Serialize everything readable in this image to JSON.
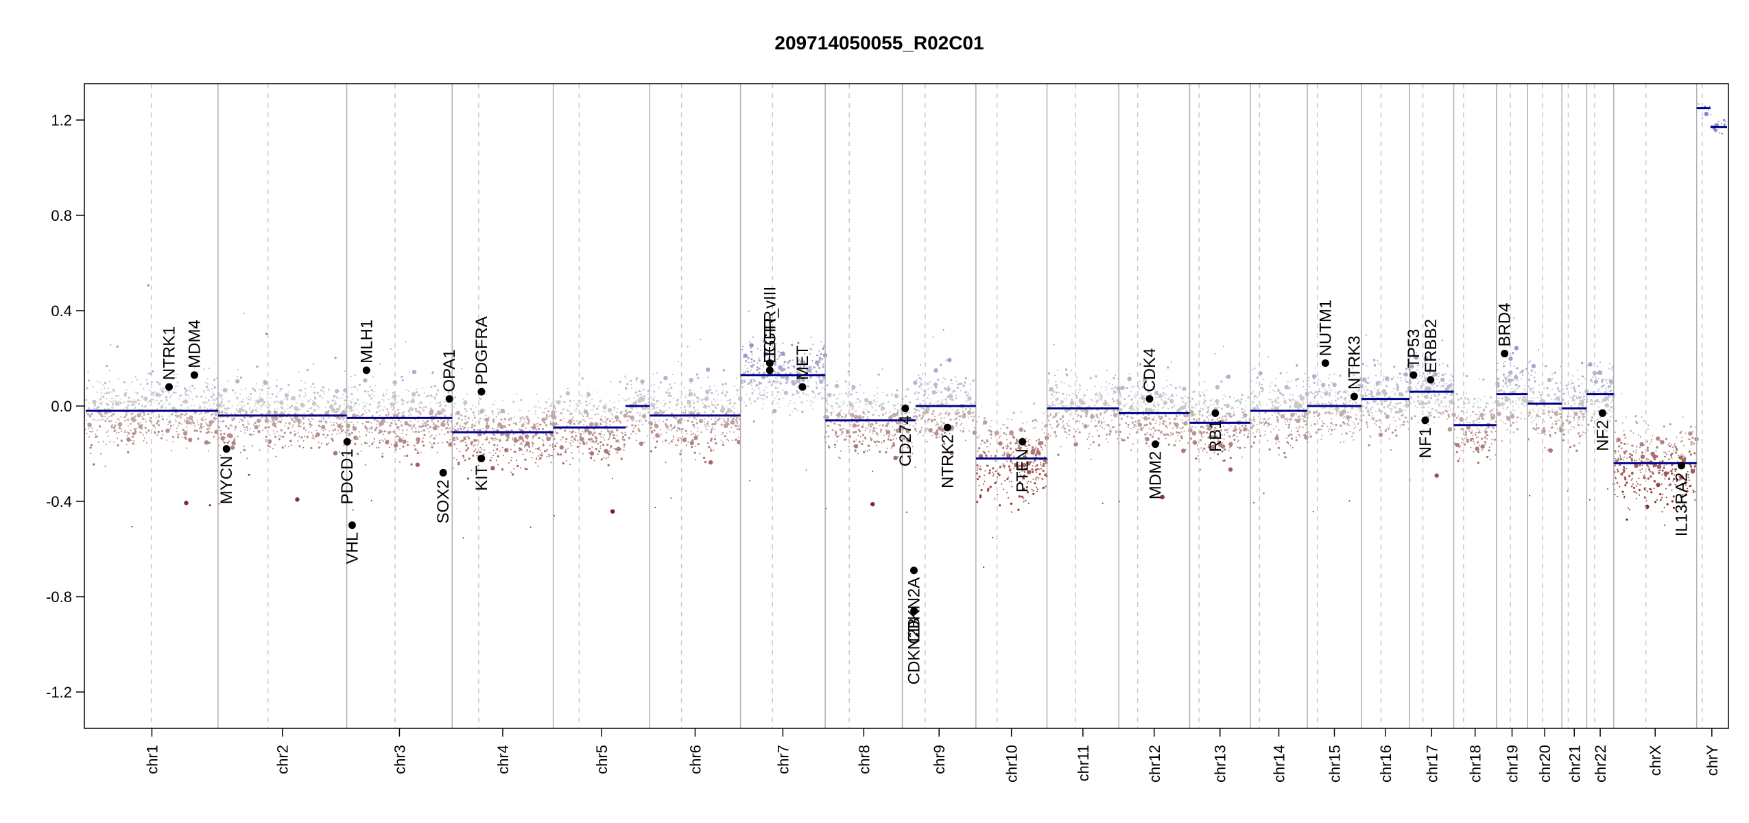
{
  "chart_data": {
    "type": "scatter",
    "title": "209714050055_R02C01",
    "xlabel": "",
    "ylabel": "",
    "ylim": [
      -1.35,
      1.35
    ],
    "yticks": [
      1.2,
      0.8,
      0.4,
      0.0,
      -0.4,
      -0.8,
      -1.2
    ],
    "ytick_labels": [
      "1.2",
      "0.8",
      "0.4",
      "0.0",
      "-0.4",
      "-0.8",
      "-1.2"
    ],
    "colors": {
      "segment": "#00008b",
      "gain": "#8f90c8",
      "neutral": "#bdbdbd",
      "loss": "#8b1a1a",
      "gene_dot": "#000000",
      "divider": "#b0b0b0"
    },
    "chromosomes": [
      {
        "name": "chr1",
        "start": 0.0,
        "end": 248.96,
        "centromere": 123.4,
        "segments": [
          {
            "start": 0.0,
            "end": 248.96,
            "value": -0.02
          }
        ]
      },
      {
        "name": "chr2",
        "start": 248.96,
        "end": 491.15,
        "centromere": 93.9,
        "segments": [
          {
            "start": 0.0,
            "end": 242.19,
            "value": -0.04
          }
        ]
      },
      {
        "name": "chr3",
        "start": 491.15,
        "end": 689.45,
        "centromere": 90.9,
        "segments": [
          {
            "start": 0.0,
            "end": 198.3,
            "value": -0.05
          }
        ]
      },
      {
        "name": "chr4",
        "start": 689.45,
        "end": 879.66,
        "centromere": 50.0,
        "segments": [
          {
            "start": 0.0,
            "end": 190.21,
            "value": -0.11
          }
        ]
      },
      {
        "name": "chr5",
        "start": 879.66,
        "end": 1061.2,
        "centromere": 48.8,
        "segments": [
          {
            "start": 0.0,
            "end": 136.0,
            "value": -0.09
          },
          {
            "start": 136.0,
            "end": 181.54,
            "value": 0.0
          }
        ]
      },
      {
        "name": "chr6",
        "start": 1061.2,
        "end": 1232.01,
        "centromere": 59.8,
        "segments": [
          {
            "start": 0.0,
            "end": 170.81,
            "value": -0.04
          }
        ]
      },
      {
        "name": "chr7",
        "start": 1232.01,
        "end": 1391.36,
        "centromere": 60.1,
        "segments": [
          {
            "start": 0.0,
            "end": 159.35,
            "value": 0.13
          }
        ]
      },
      {
        "name": "chr8",
        "start": 1391.36,
        "end": 1536.5,
        "centromere": 45.2,
        "segments": [
          {
            "start": 0.0,
            "end": 145.14,
            "value": -0.06
          }
        ]
      },
      {
        "name": "chr9",
        "start": 1536.5,
        "end": 1674.89,
        "centromere": 43.0,
        "segments": [
          {
            "start": 0.0,
            "end": 25.0,
            "value": -0.06
          },
          {
            "start": 25.0,
            "end": 138.39,
            "value": 0.0
          }
        ]
      },
      {
        "name": "chr10",
        "start": 1674.89,
        "end": 1808.69,
        "centromere": 39.8,
        "segments": [
          {
            "start": 0.0,
            "end": 133.8,
            "value": -0.22
          }
        ]
      },
      {
        "name": "chr11",
        "start": 1808.69,
        "end": 1943.77,
        "centromere": 53.4,
        "segments": [
          {
            "start": 0.0,
            "end": 135.09,
            "value": -0.01
          }
        ]
      },
      {
        "name": "chr12",
        "start": 1943.77,
        "end": 2077.04,
        "centromere": 35.5,
        "segments": [
          {
            "start": 0.0,
            "end": 133.28,
            "value": -0.03
          }
        ]
      },
      {
        "name": "chr13",
        "start": 2077.04,
        "end": 2191.41,
        "centromere": 17.7,
        "segments": [
          {
            "start": 0.0,
            "end": 114.36,
            "value": -0.07
          }
        ]
      },
      {
        "name": "chr14",
        "start": 2191.41,
        "end": 2298.45,
        "centromere": 17.2,
        "segments": [
          {
            "start": 0.0,
            "end": 107.04,
            "value": -0.02
          }
        ]
      },
      {
        "name": "chr15",
        "start": 2298.45,
        "end": 2400.44,
        "centromere": 19.0,
        "segments": [
          {
            "start": 0.0,
            "end": 101.99,
            "value": 0.0
          }
        ]
      },
      {
        "name": "chr16",
        "start": 2400.44,
        "end": 2490.78,
        "centromere": 36.8,
        "segments": [
          {
            "start": 0.0,
            "end": 90.34,
            "value": 0.03
          }
        ]
      },
      {
        "name": "chr17",
        "start": 2490.78,
        "end": 2574.04,
        "centromere": 25.1,
        "segments": [
          {
            "start": 0.0,
            "end": 83.26,
            "value": 0.06
          }
        ]
      },
      {
        "name": "chr18",
        "start": 2574.04,
        "end": 2654.41,
        "centromere": 18.5,
        "segments": [
          {
            "start": 0.0,
            "end": 80.37,
            "value": -0.08
          }
        ]
      },
      {
        "name": "chr19",
        "start": 2654.41,
        "end": 2713.03,
        "centromere": 26.2,
        "segments": [
          {
            "start": 0.0,
            "end": 58.62,
            "value": 0.05
          }
        ]
      },
      {
        "name": "chr20",
        "start": 2713.03,
        "end": 2777.47,
        "centromere": 28.1,
        "segments": [
          {
            "start": 0.0,
            "end": 64.44,
            "value": 0.01
          }
        ]
      },
      {
        "name": "chr21",
        "start": 2777.47,
        "end": 2824.18,
        "centromere": 12.0,
        "segments": [
          {
            "start": 0.0,
            "end": 46.71,
            "value": -0.01
          }
        ]
      },
      {
        "name": "chr22",
        "start": 2824.18,
        "end": 2875.0,
        "centromere": 15.0,
        "segments": [
          {
            "start": 0.0,
            "end": 50.82,
            "value": 0.05
          }
        ]
      },
      {
        "name": "chrX",
        "start": 2875.0,
        "end": 3031.04,
        "centromere": 60.6,
        "segments": [
          {
            "start": 0.0,
            "end": 156.04,
            "value": -0.24
          }
        ]
      },
      {
        "name": "chrY",
        "start": 3031.04,
        "end": 3088.27,
        "centromere": 10.4,
        "segments": [
          {
            "start": 0.0,
            "end": 26.0,
            "value": 1.25
          },
          {
            "start": 26.0,
            "end": 57.23,
            "value": 1.17
          }
        ]
      }
    ],
    "genes": [
      {
        "name": "NTRK1",
        "x": 156.8,
        "y": 0.08,
        "label": "above"
      },
      {
        "name": "MDM4",
        "x": 204.5,
        "y": 0.13,
        "label": "above"
      },
      {
        "name": "MYCN",
        "x": 264.8,
        "y": -0.18,
        "label": "below"
      },
      {
        "name": "VHL",
        "x": 501.3,
        "y": -0.5,
        "label": "below"
      },
      {
        "name": "PDCD1",
        "x": 491.9,
        "y": -0.15,
        "label": "below"
      },
      {
        "name": "MLH1",
        "x": 528.2,
        "y": 0.15,
        "label": "above"
      },
      {
        "name": "SOX2",
        "x": 672.6,
        "y": -0.28,
        "label": "below"
      },
      {
        "name": "OPA1",
        "x": 684.2,
        "y": 0.03,
        "label": "above"
      },
      {
        "name": "PDGFRA",
        "x": 744.6,
        "y": 0.06,
        "label": "above"
      },
      {
        "name": "KIT",
        "x": 744.4,
        "y": -0.22,
        "label": "below"
      },
      {
        "name": "EGFR",
        "x": 1287.1,
        "y": 0.18,
        "label": "above"
      },
      {
        "name": "EGFR_vIII",
        "x": 1287.1,
        "y": 0.15,
        "label": "above"
      },
      {
        "name": "MET",
        "x": 1348.5,
        "y": 0.08,
        "label": "above"
      },
      {
        "name": "CD274",
        "x": 1542.0,
        "y": -0.01,
        "label": "below"
      },
      {
        "name": "CDKN2A",
        "x": 1558.3,
        "y": -0.69,
        "label": "below"
      },
      {
        "name": "CDKN2B",
        "x": 1558.5,
        "y": -0.86,
        "label": "below"
      },
      {
        "name": "NTRK2",
        "x": 1621.5,
        "y": -0.09,
        "label": "below"
      },
      {
        "name": "PTEN",
        "x": 1762.4,
        "y": -0.15,
        "label": "below"
      },
      {
        "name": "CDK4",
        "x": 2001.6,
        "y": 0.03,
        "label": "above"
      },
      {
        "name": "MDM2",
        "x": 2012.6,
        "y": -0.16,
        "label": "below"
      },
      {
        "name": "RB1",
        "x": 2125.4,
        "y": -0.03,
        "label": "below"
      },
      {
        "name": "NUTM1",
        "x": 2332.5,
        "y": 0.18,
        "label": "above"
      },
      {
        "name": "NTRK3",
        "x": 2386.8,
        "y": 0.04,
        "label": "above"
      },
      {
        "name": "TP53",
        "x": 2498.3,
        "y": 0.13,
        "label": "above"
      },
      {
        "name": "ERBB2",
        "x": 2530.5,
        "y": 0.11,
        "label": "above"
      },
      {
        "name": "NF1",
        "x": 2520.3,
        "y": -0.06,
        "label": "below"
      },
      {
        "name": "BRD4",
        "x": 2669.7,
        "y": 0.22,
        "label": "above"
      },
      {
        "name": "NF2",
        "x": 2853.9,
        "y": -0.03,
        "label": "below"
      },
      {
        "name": "IL13RA2",
        "x": 3002.5,
        "y": -0.25,
        "label": "below"
      }
    ]
  }
}
